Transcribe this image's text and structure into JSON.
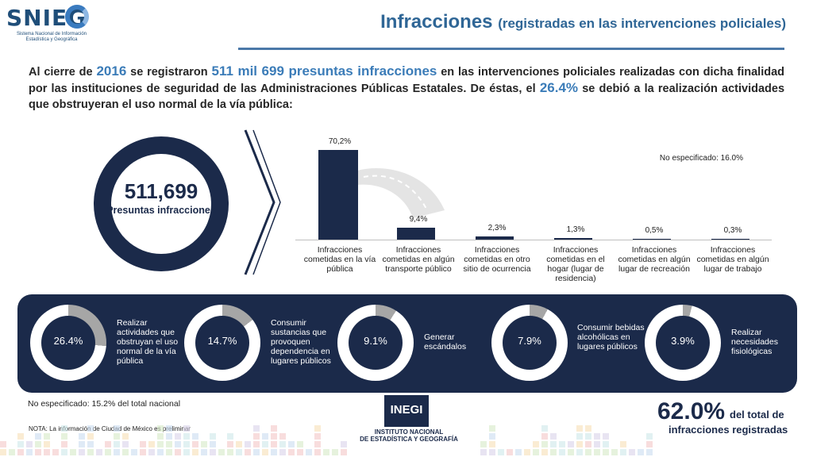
{
  "header": {
    "logo_word": "SNIEG",
    "logo_subtitle": "Sistema Nacional de Información Estadística y Geográfica",
    "title": "Infracciones",
    "title_sub": "(registradas en las intervenciones policiales)"
  },
  "intro": {
    "p1": "Al cierre de",
    "year": "2016",
    "p2": "se registraron",
    "count": "511 mil 699 presuntas infracciones",
    "p3": "en las intervenciones policiales realizadas con dicha finalidad por las instituciones de seguridad de las Administraciones Públicas Estatales. De éstas, el",
    "pct": "26.4%",
    "p4": "se debió a la realización actividades que obstruyeran el uso normal de la vía pública:"
  },
  "total_ring": {
    "number": "511,699",
    "label": "Presuntas infracciones"
  },
  "chart_data": {
    "type": "bar",
    "categories": [
      "Infracciones cometidas en la vía pública",
      "Infracciones cometidas en algún transporte público",
      "Infracciones cometidas en otro sitio de ocurrencia",
      "Infracciones cometidas en el hogar (lugar de residencia)",
      "Infracciones cometidas en algún lugar de recreación",
      "Infracciones cometidas en algún lugar de trabajo"
    ],
    "values": [
      70.2,
      9.4,
      2.3,
      1.3,
      0.5,
      0.3
    ],
    "value_labels": [
      "70,2%",
      "9,4%",
      "2,3%",
      "1,3%",
      "0,5%",
      "0,3%"
    ],
    "ylim": [
      0,
      70.2
    ],
    "grid": false,
    "color": "#1b2a4a",
    "annotation": "No especificado: 16.0%"
  },
  "donuts": [
    {
      "value": 26.4,
      "label_value": "26.4%",
      "label": "Realizar actividades que obstruyan el uso normal de la vía pública"
    },
    {
      "value": 14.7,
      "label_value": "14.7%",
      "label": "Consumir sustancias que provoquen dependencia en lugares públicos"
    },
    {
      "value": 9.1,
      "label_value": "9.1%",
      "label": "Generar escándalos"
    },
    {
      "value": 7.9,
      "label_value": "7.9%",
      "label": "Consumir bebidas alcohólicas en lugares públicos"
    },
    {
      "value": 3.9,
      "label_value": "3.9%",
      "label": "Realizar necesidades fisiológicas"
    }
  ],
  "footer": {
    "not_specified": "No especificado: 15.2% del total nacional",
    "note": "NOTA: La información de Ciudad de México es preliminar",
    "inegi_mark": "INEGI",
    "inegi_name1": "INSTITUTO NACIONAL",
    "inegi_name2": "DE ESTADÍSTICA Y GEOGRAFÍA",
    "total_pct": "62.0%",
    "total_text1": "del total de",
    "total_text2": "infracciones registradas"
  },
  "colors": {
    "navy": "#1b2a4a",
    "accent_blue": "#3b7cb8",
    "donut_gray": "#a6a6a6",
    "donut_white": "#ffffff"
  }
}
